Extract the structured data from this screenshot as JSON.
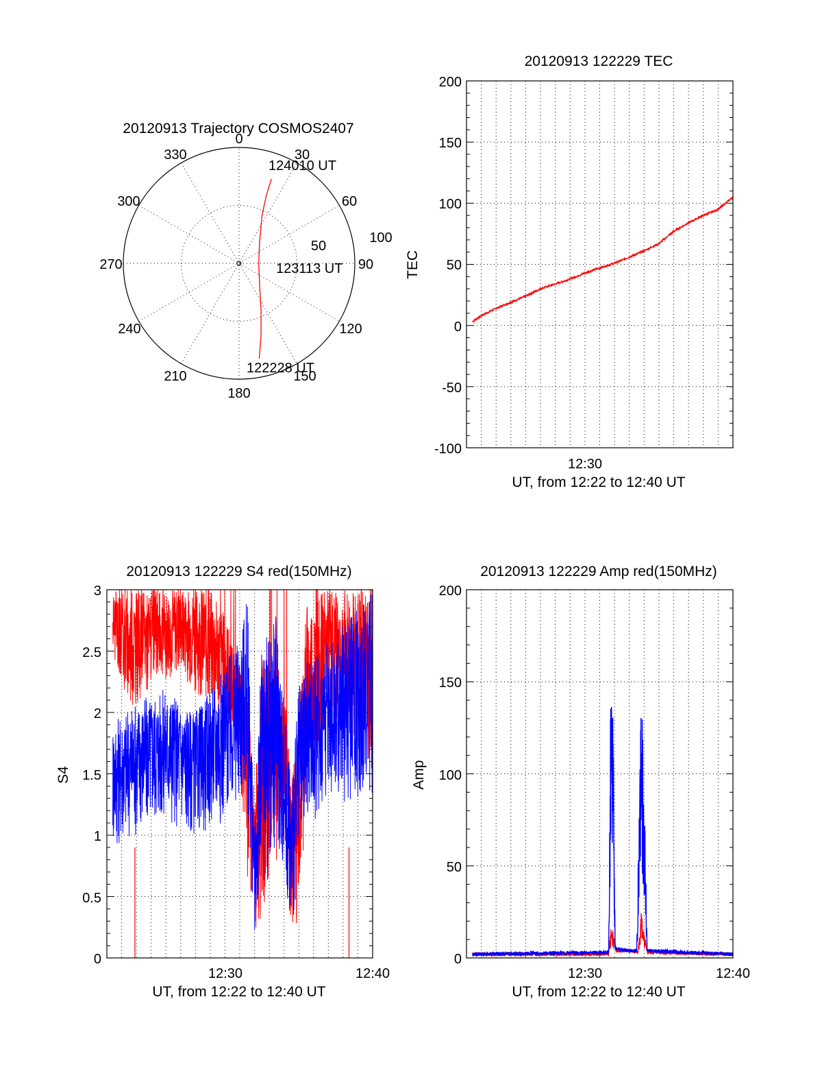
{
  "chart_data": [
    {
      "type": "polar",
      "title": "20120913 Trajectory COSMOS2407",
      "angle_labels": [
        "0",
        "30",
        "60",
        "90",
        "120",
        "150",
        "180",
        "210",
        "240",
        "270",
        "300",
        "330"
      ],
      "radius_labels": [
        "50",
        "100"
      ],
      "series": [
        {
          "color": "#ff0000",
          "points": [
            {
              "az": 21,
              "r": 78
            },
            {
              "az": 22,
              "r": 62
            },
            {
              "az": 26,
              "r": 45
            },
            {
              "az": 45,
              "r": 25
            },
            {
              "az": 90,
              "r": 17
            },
            {
              "az": 135,
              "r": 25
            },
            {
              "az": 155,
              "r": 45
            },
            {
              "az": 163,
              "r": 65
            },
            {
              "az": 168,
              "r": 84
            }
          ]
        }
      ],
      "annotations": [
        "124010 UT",
        "123113 UT",
        "122228 UT"
      ]
    },
    {
      "type": "line",
      "title": "20120913 122229 TEC",
      "ylabel": "TEC",
      "xlabel": "UT, from 12:22 to 12:40 UT",
      "ylim": [
        -100,
        200
      ],
      "yticks": [
        "200",
        "150",
        "100",
        "50",
        "0",
        "-50",
        "-100"
      ],
      "xticks": [
        "12:30"
      ],
      "xrange_minutes": [
        0,
        18
      ],
      "series": [
        {
          "color": "#ff0000",
          "points": [
            [
              0,
              0
            ],
            [
              1,
              8
            ],
            [
              2,
              14
            ],
            [
              3,
              19
            ],
            [
              4,
              24
            ],
            [
              5,
              30
            ],
            [
              6,
              34
            ],
            [
              7,
              38
            ],
            [
              8,
              43
            ],
            [
              9,
              47
            ],
            [
              10,
              51
            ],
            [
              11,
              56
            ],
            [
              12,
              61
            ],
            [
              13,
              67
            ],
            [
              14,
              77
            ],
            [
              15,
              84
            ],
            [
              16,
              90
            ],
            [
              17,
              95
            ],
            [
              18,
              105
            ]
          ]
        }
      ]
    },
    {
      "type": "line",
      "title": "20120913 122229 S4 red(150MHz)",
      "ylabel": "S4",
      "xlabel": "UT, from 12:22 to 12:40 UT",
      "ylim": [
        0,
        3
      ],
      "yticks": [
        "3",
        "2.5",
        "2",
        "1.5",
        "1",
        "0.5",
        "0"
      ],
      "xticks": [
        "12:30",
        "12:40"
      ],
      "xrange_minutes": [
        0,
        18
      ],
      "series": [
        {
          "color": "#ff0000",
          "envelope": [
            [
              0,
              2.6,
              3
            ],
            [
              1.5,
              2.0,
              3
            ],
            [
              3,
              2.2,
              3
            ],
            [
              5,
              2.3,
              3
            ],
            [
              7,
              2.0,
              3
            ],
            [
              8,
              1.9,
              2.8
            ],
            [
              9,
              1.6,
              2.4
            ],
            [
              9.5,
              0.6,
              2.2
            ],
            [
              10,
              0.1,
              1.3
            ],
            [
              10.5,
              0.3,
              2.4
            ],
            [
              11,
              0.6,
              2.6
            ],
            [
              12,
              1.0,
              2.2
            ],
            [
              12.5,
              0.15,
              1.5
            ],
            [
              13,
              0.3,
              2.0
            ],
            [
              13.5,
              1.2,
              2.9
            ],
            [
              15,
              2.0,
              3
            ],
            [
              18,
              1.5,
              3
            ]
          ]
        },
        {
          "color": "#0000ff",
          "envelope": [
            [
              0,
              0.85,
              1.9
            ],
            [
              2,
              1.0,
              2.1
            ],
            [
              4,
              1.1,
              2.2
            ],
            [
              6,
              1.0,
              2.0
            ],
            [
              8,
              1.1,
              2.4
            ],
            [
              9,
              1.2,
              2.6
            ],
            [
              9.5,
              1.3,
              3.0
            ],
            [
              10,
              0.2,
              1.0
            ],
            [
              10.5,
              0.4,
              2.6
            ],
            [
              11.5,
              0.9,
              2.8
            ],
            [
              12.5,
              0.2,
              1.4
            ],
            [
              13,
              0.6,
              2.2
            ],
            [
              13.5,
              1.0,
              2.4
            ],
            [
              15,
              1.3,
              2.6
            ],
            [
              18,
              1.2,
              3.0
            ]
          ]
        }
      ]
    },
    {
      "type": "line",
      "title": "20120913 122229 Amp red(150MHz)",
      "ylabel": "Amp",
      "xlabel": "UT, from 12:22 to 12:40 UT",
      "ylim": [
        0,
        200
      ],
      "yticks": [
        "200",
        "150",
        "100",
        "50",
        "0"
      ],
      "xticks": [
        "12:30",
        "12:40"
      ],
      "xrange_minutes": [
        0,
        18
      ],
      "series": [
        {
          "color": "#ff0000",
          "points": [
            [
              0,
              2
            ],
            [
              9.6,
              2
            ],
            [
              9.8,
              20
            ],
            [
              10.0,
              10
            ],
            [
              10.1,
              4
            ],
            [
              11,
              4
            ],
            [
              11.6,
              3
            ],
            [
              11.8,
              28
            ],
            [
              12.0,
              14
            ],
            [
              12.2,
              3
            ],
            [
              18,
              2
            ]
          ]
        },
        {
          "color": "#0000ff",
          "points": [
            [
              0,
              2
            ],
            [
              9.6,
              3
            ],
            [
              9.75,
              160
            ],
            [
              9.9,
              135
            ],
            [
              10.0,
              40
            ],
            [
              10.05,
              5
            ],
            [
              10.9,
              4
            ],
            [
              11.5,
              4
            ],
            [
              11.8,
              152
            ],
            [
              11.95,
              110
            ],
            [
              12.1,
              60
            ],
            [
              12.2,
              4
            ],
            [
              15,
              3
            ],
            [
              18,
              2
            ]
          ]
        }
      ]
    }
  ]
}
